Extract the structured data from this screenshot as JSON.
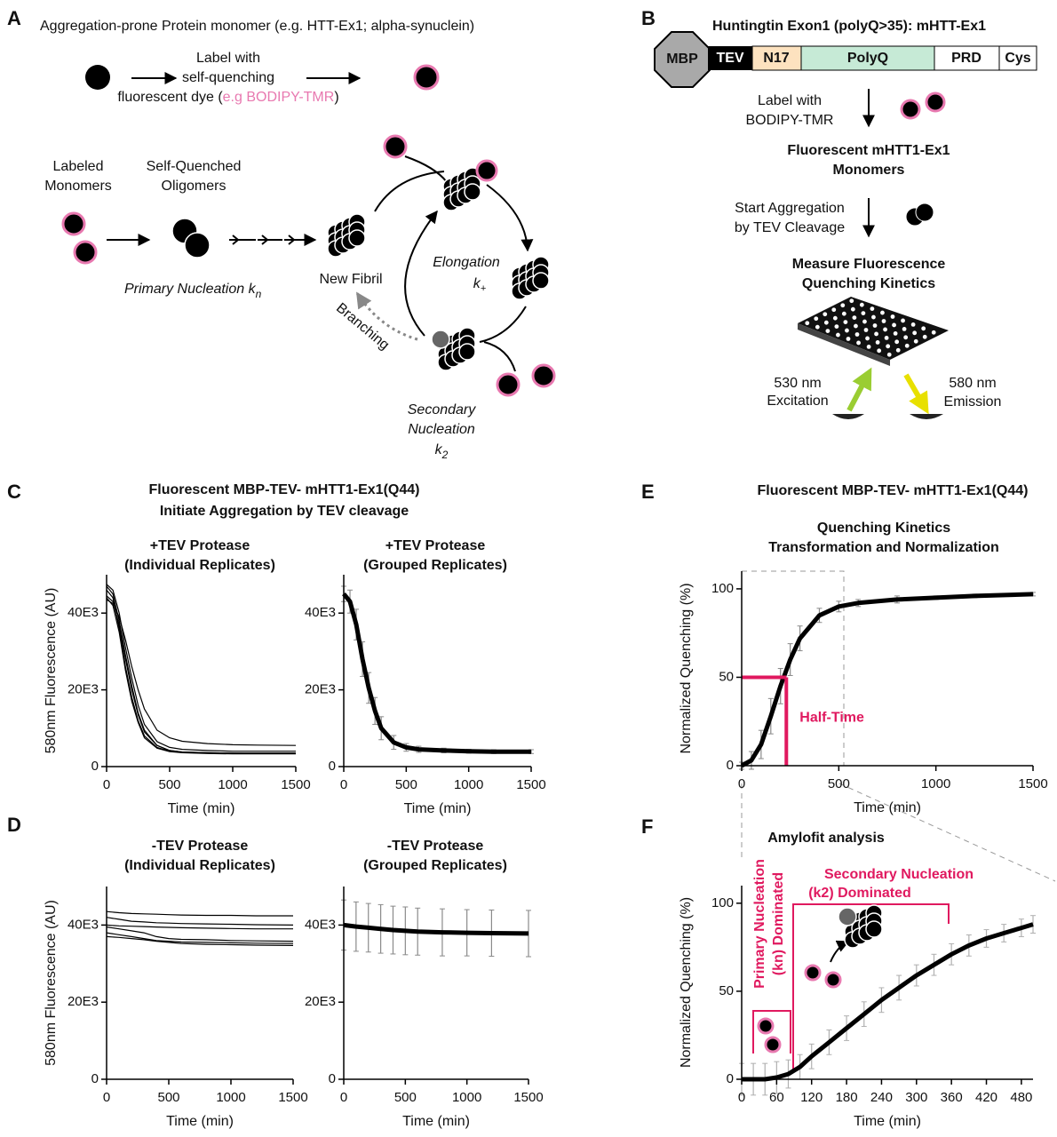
{
  "panel_labels": [
    "A",
    "B",
    "C",
    "D",
    "E",
    "F"
  ],
  "panel_a": {
    "title": "Aggregation-prone Protein monomer (e.g. HTT-Ex1; alpha-synuclein)",
    "label_lines": [
      "Label with",
      "self-quenching"
    ],
    "dye_prefix": "fluorescent dye (",
    "dye": "e.g BODIPY-TMR",
    "dye_suffix": ")",
    "labeled": [
      "Labeled",
      "Monomers"
    ],
    "quenched": [
      "Self-Quenched",
      "Oligomers"
    ],
    "primary": "Primary Nucleation k",
    "primary_sub": "n",
    "new_fibril": "New Fibril",
    "elongation": "Elongation",
    "elongation_k": "k",
    "elongation_sub": "+",
    "branching": "Branching",
    "secondary": [
      "Secondary",
      "Nucleation"
    ],
    "secondary_k": "k",
    "secondary_sub": "2"
  },
  "panel_b": {
    "title": "Huntingtin Exon1 (polyQ>35): mHTT-Ex1",
    "domains": [
      "MBP",
      "TEV",
      "N17",
      "PolyQ",
      "PRD",
      "Cys"
    ],
    "label": [
      "Label with",
      "BODIPY-TMR"
    ],
    "monomers": [
      "Fluorescent mHTT1-Ex1",
      "Monomers"
    ],
    "start": [
      "Start Aggregation",
      "by TEV Cleavage"
    ],
    "measure": [
      "Measure Fluorescence",
      "Quenching Kinetics"
    ],
    "excitation": [
      "530 nm",
      "Excitation"
    ],
    "emission": [
      "580 nm",
      "Emission"
    ]
  },
  "panel_c_header": [
    "Fluorescent MBP-TEV- mHTT1-Ex1(Q44)",
    "Initiate Aggregation by TEV cleavage"
  ],
  "panel_e_header": "Fluorescent MBP-TEV- mHTT1-Ex1(Q44)",
  "chart_data": [
    {
      "type": "line",
      "title": [
        "+TEV Protease",
        "(Individual Replicates)"
      ],
      "xlabel": "Time (min)",
      "ylabel": "580nm Fluorescence (AU)",
      "x": [
        0,
        50,
        100,
        150,
        200,
        250,
        300,
        400,
        500,
        600,
        800,
        1000,
        1200,
        1500
      ],
      "series": [
        {
          "color": "#000000",
          "values": [
            47000,
            45000,
            38000,
            29000,
            21000,
            14000,
            9500,
            5500,
            4200,
            3800,
            3600,
            3500,
            3500,
            3500
          ]
        },
        {
          "color": "#000000",
          "values": [
            46000,
            44000,
            36000,
            26000,
            18000,
            12000,
            8000,
            5000,
            4000,
            3700,
            3500,
            3500,
            3400,
            3400
          ]
        },
        {
          "color": "#000000",
          "values": [
            44500,
            43000,
            37000,
            28000,
            20000,
            13500,
            9000,
            5500,
            4200,
            3800,
            3600,
            3500,
            3500,
            3500
          ]
        },
        {
          "color": "#000000",
          "values": [
            43500,
            42500,
            39000,
            33000,
            26000,
            20000,
            15000,
            9500,
            7500,
            6600,
            6000,
            5700,
            5600,
            5500
          ]
        },
        {
          "color": "#000000",
          "values": [
            47500,
            46000,
            40000,
            31000,
            23000,
            16000,
            11000,
            6500,
            5000,
            4500,
            4200,
            4000,
            4000,
            4000
          ]
        },
        {
          "color": "#000000",
          "values": [
            44000,
            42000,
            35000,
            25000,
            17000,
            11500,
            7500,
            4800,
            3900,
            3600,
            3400,
            3300,
            3300,
            3300
          ]
        }
      ],
      "xlim": [
        0,
        1500
      ],
      "xticks": [
        0,
        500,
        1000,
        1500
      ],
      "ylim": [
        0,
        50000
      ],
      "yticks": [
        0,
        {
          "value": 20000,
          "label": "20E3"
        },
        {
          "value": 40000,
          "label": "40E3"
        }
      ]
    },
    {
      "type": "line",
      "title": [
        "+TEV Protease",
        "(Grouped Replicates)"
      ],
      "xlabel": "Time (min)",
      "x": [
        0,
        50,
        100,
        150,
        200,
        250,
        300,
        400,
        500,
        600,
        800,
        1000,
        1200,
        1500
      ],
      "series": [
        {
          "color": "#000000",
          "error_color": "#8a8a8a",
          "values": [
            45000,
            43000,
            37000,
            28000,
            20500,
            14500,
            10000,
            6300,
            5000,
            4500,
            4200,
            4000,
            3900,
            3900
          ],
          "errors": [
            2000,
            3000,
            4000,
            4500,
            4000,
            3500,
            3000,
            1800,
            1000,
            800,
            600,
            500,
            500,
            500
          ]
        }
      ],
      "xlim": [
        0,
        1500
      ],
      "xticks": [
        0,
        500,
        1000,
        1500
      ],
      "ylim": [
        0,
        50000
      ],
      "yticks": [
        0,
        {
          "value": 20000,
          "label": "20E3"
        },
        {
          "value": 40000,
          "label": "40E3"
        }
      ]
    },
    {
      "type": "line",
      "title": [
        "-TEV Protease",
        "(Individual Replicates)"
      ],
      "xlabel": "Time (min)",
      "ylabel": "580nm Fluorescence (AU)",
      "x": [
        0,
        100,
        200,
        300,
        400,
        500,
        600,
        800,
        1000,
        1200,
        1500
      ],
      "series": [
        {
          "color": "#000000",
          "values": [
            43500,
            43200,
            43000,
            42900,
            42800,
            42700,
            42600,
            42500,
            42500,
            42400,
            42400
          ]
        },
        {
          "color": "#000000",
          "values": [
            42000,
            41500,
            41000,
            40800,
            40600,
            40500,
            40400,
            40300,
            40200,
            40100,
            40000
          ]
        },
        {
          "color": "#000000",
          "values": [
            40000,
            39800,
            39700,
            39600,
            39500,
            39400,
            39300,
            39200,
            39100,
            39000,
            39000
          ]
        },
        {
          "color": "#000000",
          "values": [
            39500,
            39000,
            38500,
            38000,
            37000,
            36500,
            36300,
            36200,
            36000,
            35900,
            35800
          ]
        },
        {
          "color": "#000000",
          "values": [
            38000,
            37500,
            37000,
            36500,
            36000,
            35800,
            35600,
            35500,
            35400,
            35300,
            35200
          ]
        },
        {
          "color": "#000000",
          "values": [
            37000,
            36800,
            36500,
            36200,
            35800,
            35500,
            35200,
            35000,
            34900,
            34800,
            34700
          ]
        }
      ],
      "xlim": [
        0,
        1500
      ],
      "xticks": [
        0,
        500,
        1000,
        1500
      ],
      "ylim": [
        0,
        50000
      ],
      "yticks": [
        0,
        {
          "value": 20000,
          "label": "20E3"
        },
        {
          "value": 40000,
          "label": "40E3"
        }
      ]
    },
    {
      "type": "line",
      "title": [
        "-TEV Protease",
        "(Grouped Replicates)"
      ],
      "xlabel": "Time (min)",
      "x": [
        0,
        100,
        200,
        300,
        400,
        500,
        600,
        800,
        1000,
        1200,
        1500
      ],
      "series": [
        {
          "color": "#000000",
          "error_color": "#8a8a8a",
          "values": [
            40000,
            39600,
            39300,
            39000,
            38700,
            38500,
            38300,
            38100,
            38000,
            37900,
            37800
          ],
          "errors": [
            6500,
            6400,
            6300,
            6300,
            6200,
            6200,
            6100,
            6100,
            6000,
            6000,
            6000
          ]
        }
      ],
      "xlim": [
        0,
        1500
      ],
      "xticks": [
        0,
        500,
        1000,
        1500
      ],
      "ylim": [
        0,
        50000
      ],
      "yticks": [
        0,
        {
          "value": 20000,
          "label": "20E3"
        },
        {
          "value": 40000,
          "label": "40E3"
        }
      ]
    },
    {
      "type": "line",
      "title": [
        "Quenching Kinetics",
        "Transformation and Normalization"
      ],
      "xlabel": "Time (min)",
      "ylabel": "Normalized Quenching (%)",
      "x": [
        0,
        50,
        100,
        150,
        200,
        250,
        300,
        400,
        500,
        600,
        800,
        1000,
        1200,
        1500
      ],
      "series": [
        {
          "color": "#000000",
          "error_color": "#8a8a8a",
          "values": [
            0,
            3,
            12,
            28,
            45,
            60,
            72,
            85,
            90,
            92,
            94,
            95,
            96,
            97
          ],
          "errors": [
            2,
            5,
            8,
            10,
            10,
            9,
            7,
            4,
            3,
            2,
            2,
            1,
            1,
            1
          ]
        }
      ],
      "half_time": {
        "x": 230,
        "y": 50,
        "label": "Half-Time",
        "color": "#e0195f"
      },
      "xlim": [
        0,
        1500
      ],
      "xticks": [
        0,
        500,
        1000,
        1500
      ],
      "ylim": [
        0,
        110
      ],
      "yticks": [
        0,
        50,
        100
      ]
    },
    {
      "type": "line",
      "title": [
        "Amylofit analysis"
      ],
      "xlabel": "Time (min)",
      "ylabel": "Normalized Quenching (%)",
      "x": [
        0,
        20,
        40,
        60,
        80,
        100,
        120,
        150,
        180,
        210,
        240,
        270,
        300,
        330,
        360,
        390,
        420,
        450,
        480,
        500
      ],
      "series": [
        {
          "color": "#000000",
          "error_color": "#b0b0b0",
          "values": [
            0,
            0,
            0,
            1,
            3,
            7,
            13,
            21,
            29,
            37,
            45,
            52,
            59,
            65,
            71,
            76,
            80,
            83,
            86,
            88
          ],
          "errors": [
            9,
            9,
            9,
            9,
            8,
            7,
            7,
            7,
            7,
            7,
            7,
            7,
            6,
            6,
            6,
            6,
            5,
            5,
            5,
            5
          ]
        }
      ],
      "annotations": [
        "Primary Nucleation",
        "(kn) Dominated",
        "Secondary Nucleation",
        "(k2) Dominated"
      ],
      "annotation_color": "#e0195f",
      "xlim": [
        0,
        500
      ],
      "xticks": [
        0,
        60,
        120,
        180,
        240,
        300,
        360,
        420,
        480
      ],
      "ylim": [
        0,
        110
      ],
      "yticks": [
        0,
        50,
        100
      ]
    }
  ]
}
